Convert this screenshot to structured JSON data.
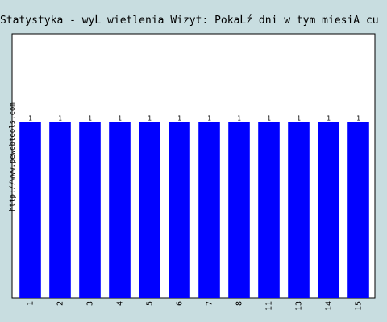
{
  "chart_data": {
    "type": "bar",
    "title": "Statystyka - wyĹ wietlenia Wizyt: PokaĹź dni w tym miesiÄ cu",
    "xlabel": "",
    "ylabel": "",
    "categories": [
      "1",
      "2",
      "3",
      "4",
      "5",
      "6",
      "7",
      "8",
      "11",
      "13",
      "14",
      "15"
    ],
    "values": [
      1,
      1,
      1,
      1,
      1,
      1,
      1,
      1,
      1,
      1,
      1,
      1
    ],
    "ylim": [
      0,
      1.5
    ],
    "grid": false,
    "bar_color": "#0000ff",
    "plot_background": "#ffffff"
  },
  "watermark": "http://www.pewebtools.com"
}
